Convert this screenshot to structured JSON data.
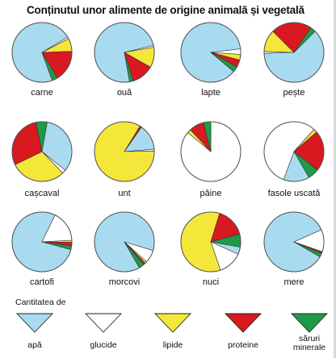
{
  "colors": {
    "apa": "#a8dbf0",
    "glucide": "#ffffff",
    "lipide": "#f5e63a",
    "proteine": "#d8191f",
    "saruri": "#1f9a4a"
  },
  "chart_data": {
    "type": "pie",
    "title": "Conținutul unor alimente de origine animală și vegetală",
    "legend_title": "Cantitatea de",
    "legend": [
      {
        "key": "apa",
        "label": "apă"
      },
      {
        "key": "glucide",
        "label": "glucide"
      },
      {
        "key": "lipide",
        "label": "lipide"
      },
      {
        "key": "proteine",
        "label": "proteine"
      },
      {
        "key": "saruri",
        "label": "săruri minerale"
      }
    ],
    "pies": [
      {
        "label": "carne",
        "values": {
          "apa": 72,
          "glucide": 1,
          "lipide": 7,
          "proteine": 17,
          "saruri": 3
        }
      },
      {
        "label": "ouă",
        "values": {
          "apa": 74,
          "glucide": 1,
          "lipide": 11,
          "proteine": 12,
          "saruri": 2
        }
      },
      {
        "label": "lapte",
        "values": {
          "apa": 87,
          "glucide": 3,
          "lipide": 3,
          "proteine": 4,
          "saruri": 3
        }
      },
      {
        "label": "pește",
        "values": {
          "apa": 62,
          "glucide": 1,
          "lipide": 12,
          "proteine": 22,
          "saruri": 3
        }
      },
      {
        "label": "cașcaval",
        "values": {
          "apa": 33,
          "glucide": 2,
          "lipide": 30,
          "proteine": 29,
          "saruri": 6
        }
      },
      {
        "label": "unt",
        "values": {
          "apa": 14,
          "glucide": 1,
          "lipide": 84,
          "proteine": 1,
          "saruri": 0
        }
      },
      {
        "label": "pâine",
        "values": {
          "apa": 0,
          "glucide": 86,
          "lipide": 2,
          "proteine": 8,
          "saruri": 4
        }
      },
      {
        "label": "fasole uscată",
        "values": {
          "apa": 14,
          "glucide": 56,
          "lipide": 2,
          "proteine": 22,
          "saruri": 6
        }
      },
      {
        "label": "cartofi",
        "values": {
          "apa": 78,
          "glucide": 17,
          "lipide": 1,
          "proteine": 2,
          "saruri": 2
        }
      },
      {
        "label": "morcovi",
        "values": {
          "apa": 88,
          "glucide": 7,
          "lipide": 1,
          "proteine": 1,
          "saruri": 3
        }
      },
      {
        "label": "nuci",
        "values": {
          "apa": 4,
          "glucide": 13,
          "lipide": 60,
          "proteine": 16,
          "saruri": 7
        }
      },
      {
        "label": "mere",
        "values": {
          "apa": 85,
          "glucide": 12,
          "lipide": 0,
          "proteine": 1,
          "saruri": 2
        }
      }
    ]
  }
}
